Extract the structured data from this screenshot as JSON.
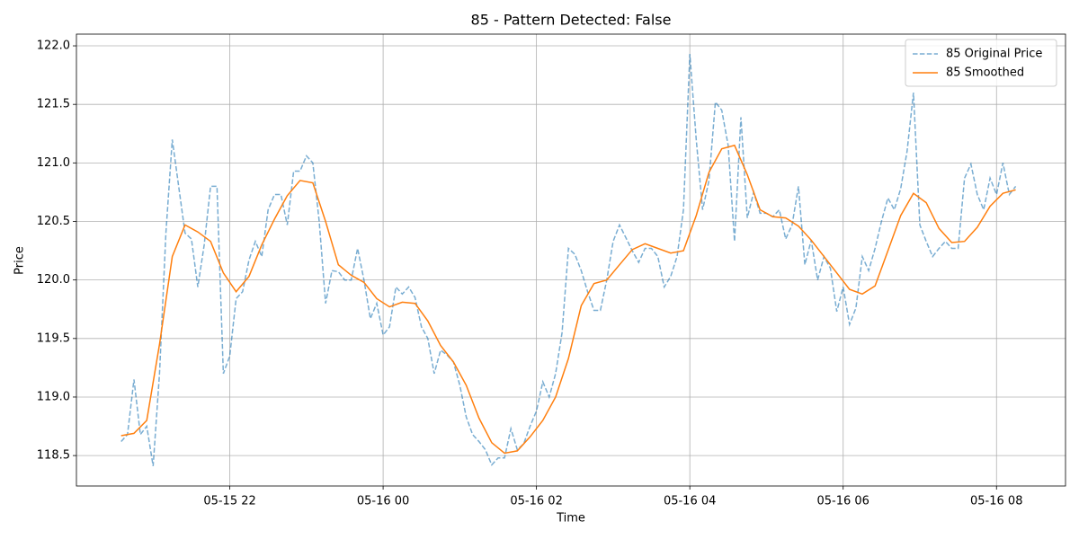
{
  "chart_data": {
    "type": "line",
    "title": "85 - Pattern Detected: False",
    "x_label": "Time",
    "y_label": "Price",
    "xlim": [
      "05-15 20:00",
      "05-16 08:54"
    ],
    "xticks": [
      "05-15 22",
      "05-16 00",
      "05-16 02",
      "05-16 04",
      "05-16 06",
      "05-16 08"
    ],
    "ylim": [
      118.24,
      122.1
    ],
    "yticks": [
      118.5,
      {
        "value": 119,
        "label": "119.0"
      },
      119.5,
      {
        "value": 120,
        "label": "120.0"
      },
      120.5,
      {
        "value": 121,
        "label": "121.0"
      },
      121.5,
      {
        "value": 122,
        "label": "122.0"
      }
    ],
    "grid": true,
    "legend": "upper right",
    "series": [
      {
        "name": "85 Original Price",
        "color": "#1f77b4",
        "dashed": true,
        "x": [
          "05-15 20:35",
          "05-15 20:40",
          "05-15 20:45",
          "05-15 20:50",
          "05-15 20:55",
          "05-15 21:00",
          "05-15 21:05",
          "05-15 21:10",
          "05-15 21:15",
          "05-15 21:20",
          "05-15 21:25",
          "05-15 21:30",
          "05-15 21:35",
          "05-15 21:40",
          "05-15 21:45",
          "05-15 21:50",
          "05-15 21:55",
          "05-15 22:00",
          "05-15 22:05",
          "05-15 22:10",
          "05-15 22:15",
          "05-15 22:20",
          "05-15 22:25",
          "05-15 22:30",
          "05-15 22:35",
          "05-15 22:40",
          "05-15 22:45",
          "05-15 22:50",
          "05-15 22:55",
          "05-15 23:00",
          "05-15 23:05",
          "05-15 23:10",
          "05-15 23:15",
          "05-15 23:20",
          "05-15 23:25",
          "05-15 23:30",
          "05-15 23:35",
          "05-15 23:40",
          "05-15 23:45",
          "05-15 23:50",
          "05-15 23:55",
          "05-16 00:00",
          "05-16 00:05",
          "05-16 00:10",
          "05-16 00:15",
          "05-16 00:20",
          "05-16 00:25",
          "05-16 00:30",
          "05-16 00:35",
          "05-16 00:40",
          "05-16 00:45",
          "05-16 00:50",
          "05-16 00:55",
          "05-16 01:00",
          "05-16 01:05",
          "05-16 01:10",
          "05-16 01:15",
          "05-16 01:20",
          "05-16 01:25",
          "05-16 01:30",
          "05-16 01:35",
          "05-16 01:40",
          "05-16 01:45",
          "05-16 01:50",
          "05-16 01:55",
          "05-16 02:00",
          "05-16 02:05",
          "05-16 02:10",
          "05-16 02:15",
          "05-16 02:20",
          "05-16 02:25",
          "05-16 02:30",
          "05-16 02:35",
          "05-16 02:40",
          "05-16 02:45",
          "05-16 02:50",
          "05-16 02:55",
          "05-16 03:00",
          "05-16 03:05",
          "05-16 03:10",
          "05-16 03:15",
          "05-16 03:20",
          "05-16 03:25",
          "05-16 03:30",
          "05-16 03:35",
          "05-16 03:40",
          "05-16 03:45",
          "05-16 03:50",
          "05-16 03:55",
          "05-16 04:00",
          "05-16 04:05",
          "05-16 04:10",
          "05-16 04:15",
          "05-16 04:20",
          "05-16 04:25",
          "05-16 04:30",
          "05-16 04:35",
          "05-16 04:40",
          "05-16 04:45",
          "05-16 04:50",
          "05-16 04:55",
          "05-16 05:00",
          "05-16 05:05",
          "05-16 05:10",
          "05-16 05:15",
          "05-16 05:20",
          "05-16 05:25",
          "05-16 05:30",
          "05-16 05:35",
          "05-16 05:40",
          "05-16 05:45",
          "05-16 05:50",
          "05-16 05:55",
          "05-16 06:00",
          "05-16 06:05",
          "05-16 06:10",
          "05-16 06:15",
          "05-16 06:20",
          "05-16 06:25",
          "05-16 06:30",
          "05-16 06:35",
          "05-16 06:40",
          "05-16 06:45",
          "05-16 06:50",
          "05-16 06:55",
          "05-16 07:00",
          "05-16 07:05",
          "05-16 07:10",
          "05-16 07:15",
          "05-16 07:20",
          "05-16 07:25",
          "05-16 07:30",
          "05-16 07:35",
          "05-16 07:40",
          "05-16 07:45",
          "05-16 07:50",
          "05-16 07:55",
          "05-16 08:00",
          "05-16 08:05",
          "05-16 08:10",
          "05-16 08:15"
        ],
        "values": [
          118.62,
          118.68,
          119.15,
          118.68,
          118.75,
          118.41,
          119.2,
          120.4,
          121.2,
          120.8,
          120.4,
          120.35,
          119.94,
          120.3,
          120.8,
          120.8,
          119.2,
          119.35,
          119.84,
          119.9,
          120.17,
          120.33,
          120.2,
          120.6,
          120.73,
          120.73,
          120.47,
          120.93,
          120.93,
          121.06,
          121.0,
          120.5,
          119.8,
          120.08,
          120.07,
          120.0,
          120.0,
          120.27,
          120.0,
          119.67,
          119.8,
          119.53,
          119.6,
          119.94,
          119.88,
          119.94,
          119.85,
          119.6,
          119.5,
          119.2,
          119.4,
          119.36,
          119.3,
          119.1,
          118.83,
          118.68,
          118.62,
          118.55,
          118.42,
          118.48,
          118.48,
          118.73,
          118.55,
          118.6,
          118.75,
          118.88,
          119.13,
          119.0,
          119.2,
          119.55,
          120.27,
          120.22,
          120.08,
          119.9,
          119.74,
          119.74,
          120.0,
          120.33,
          120.47,
          120.36,
          120.25,
          120.15,
          120.27,
          120.27,
          120.2,
          119.94,
          120.03,
          120.2,
          120.6,
          121.93,
          121.2,
          120.6,
          120.85,
          121.52,
          121.45,
          121.15,
          120.33,
          121.39,
          120.53,
          120.75,
          120.57,
          120.57,
          120.54,
          120.6,
          120.35,
          120.47,
          120.8,
          120.13,
          120.34,
          120.0,
          120.2,
          120.1,
          119.73,
          119.94,
          119.62,
          119.76,
          120.2,
          120.08,
          120.27,
          120.5,
          120.7,
          120.6,
          120.78,
          121.1,
          121.6,
          120.47,
          120.33,
          120.2,
          120.27,
          120.33,
          120.27,
          120.27,
          120.87,
          120.99,
          120.73,
          120.6,
          120.87,
          120.73,
          121.0,
          120.73,
          120.8
        ]
      },
      {
        "name": "85 Smoothed",
        "color": "#ff7f0e",
        "dashed": false,
        "x": [
          "05-15 20:35",
          "05-15 20:45",
          "05-15 20:55",
          "05-15 21:05",
          "05-15 21:15",
          "05-15 21:25",
          "05-15 21:35",
          "05-15 21:45",
          "05-15 21:55",
          "05-15 22:05",
          "05-15 22:15",
          "05-15 22:25",
          "05-15 22:35",
          "05-15 22:45",
          "05-15 22:55",
          "05-15 23:05",
          "05-15 23:15",
          "05-15 23:25",
          "05-15 23:35",
          "05-15 23:45",
          "05-15 23:55",
          "05-16 00:05",
          "05-16 00:15",
          "05-16 00:25",
          "05-16 00:35",
          "05-16 00:45",
          "05-16 00:55",
          "05-16 01:05",
          "05-16 01:15",
          "05-16 01:25",
          "05-16 01:35",
          "05-16 01:45",
          "05-16 01:55",
          "05-16 02:05",
          "05-16 02:15",
          "05-16 02:25",
          "05-16 02:35",
          "05-16 02:45",
          "05-16 02:55",
          "05-16 03:05",
          "05-16 03:15",
          "05-16 03:25",
          "05-16 03:35",
          "05-16 03:45",
          "05-16 03:55",
          "05-16 04:05",
          "05-16 04:15",
          "05-16 04:25",
          "05-16 04:35",
          "05-16 04:45",
          "05-16 04:55",
          "05-16 05:05",
          "05-16 05:15",
          "05-16 05:25",
          "05-16 05:35",
          "05-16 05:45",
          "05-16 05:55",
          "05-16 06:05",
          "05-16 06:15",
          "05-16 06:25",
          "05-16 06:35",
          "05-16 06:45",
          "05-16 06:55",
          "05-16 07:05",
          "05-16 07:15",
          "05-16 07:25",
          "05-16 07:35",
          "05-16 07:45",
          "05-16 07:55",
          "05-16 08:05",
          "05-16 08:15"
        ],
        "values": [
          118.67,
          118.69,
          118.8,
          119.45,
          120.2,
          120.47,
          120.41,
          120.33,
          120.06,
          119.9,
          120.03,
          120.3,
          120.52,
          120.72,
          120.85,
          120.83,
          120.5,
          120.13,
          120.04,
          119.98,
          119.84,
          119.77,
          119.81,
          119.8,
          119.65,
          119.44,
          119.3,
          119.1,
          118.82,
          118.61,
          118.52,
          118.54,
          118.66,
          118.8,
          119.0,
          119.33,
          119.78,
          119.97,
          120.0,
          120.13,
          120.26,
          120.31,
          120.27,
          120.23,
          120.25,
          120.55,
          120.92,
          121.12,
          121.15,
          120.9,
          120.6,
          120.54,
          120.53,
          120.46,
          120.34,
          120.2,
          120.06,
          119.92,
          119.88,
          119.95,
          120.25,
          120.55,
          120.74,
          120.66,
          120.44,
          120.32,
          120.33,
          120.45,
          120.63,
          120.74,
          120.77
        ]
      }
    ]
  }
}
